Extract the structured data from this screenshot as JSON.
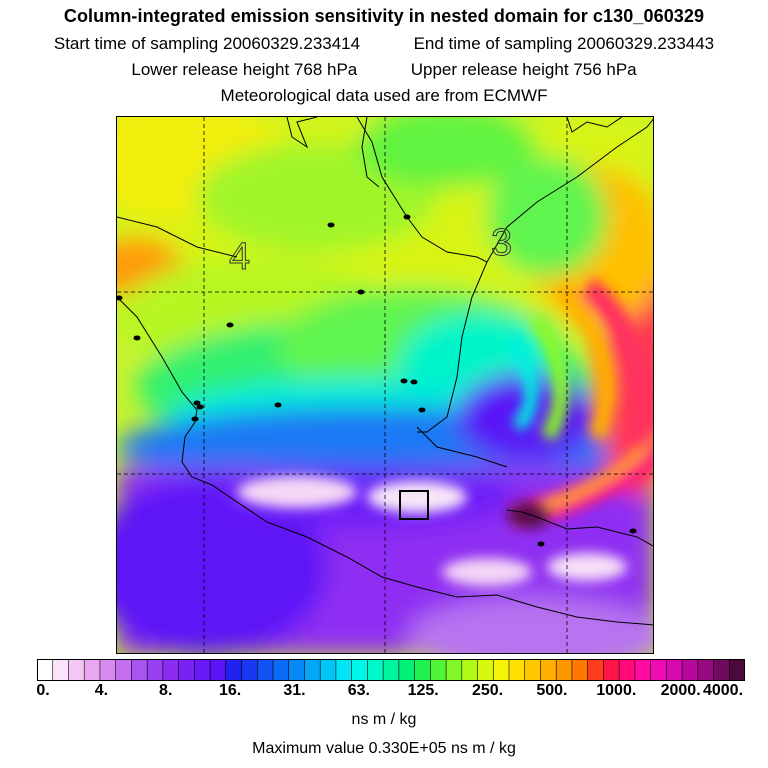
{
  "header": {
    "title": "Column-integrated emission sensitivity in nested domain for c130_060329",
    "start_label": "Start time of sampling",
    "start_value": "20060329.233414",
    "end_label": "End time of sampling",
    "end_value": "20060329.233443",
    "lower_label": "Lower release height",
    "lower_value": "768 hPa",
    "upper_label": "Upper release height",
    "upper_value": "756 hPa",
    "met_text": "Meteorological data used are from ECMWF"
  },
  "map": {
    "sector_labels": [
      "4",
      "3"
    ],
    "receptor_marker": "square-box",
    "city_markers": 17
  },
  "colorbar": {
    "tick_labels": [
      "0.",
      "4.",
      "8.",
      "16.",
      "31.",
      "63.",
      "125.",
      "250.",
      "500.",
      "1000.",
      "2000.",
      "4000."
    ],
    "colors": [
      "#ffffff",
      "#fbe3fb",
      "#f4c6f5",
      "#eaa6f0",
      "#d98aef",
      "#c46ef0",
      "#a855f0",
      "#9b3ff2",
      "#8a2cf4",
      "#7a22f6",
      "#6a1af8",
      "#5a14f6",
      "#2222f0",
      "#1a38f0",
      "#1052f2",
      "#0a6cf4",
      "#0688f6",
      "#04a6f8",
      "#00c6f8",
      "#00e4f6",
      "#00f6e8",
      "#00f8c8",
      "#00f4a0",
      "#00f078",
      "#20f050",
      "#50f438",
      "#80f828",
      "#b0fa18",
      "#d8f810",
      "#f6f408",
      "#ffe000",
      "#ffc800",
      "#ffb000",
      "#ff9800",
      "#ff7800",
      "#ff3c1e",
      "#ff1448",
      "#ff0a78",
      "#ff0aa0",
      "#f00ab4",
      "#d808b0",
      "#b8089c",
      "#980880",
      "#700a60",
      "#4a0a3c"
    ],
    "units": "ns m / kg"
  },
  "footer": {
    "max_label": "Maximum value",
    "max_value": "0.330E+05 ns m / kg"
  }
}
